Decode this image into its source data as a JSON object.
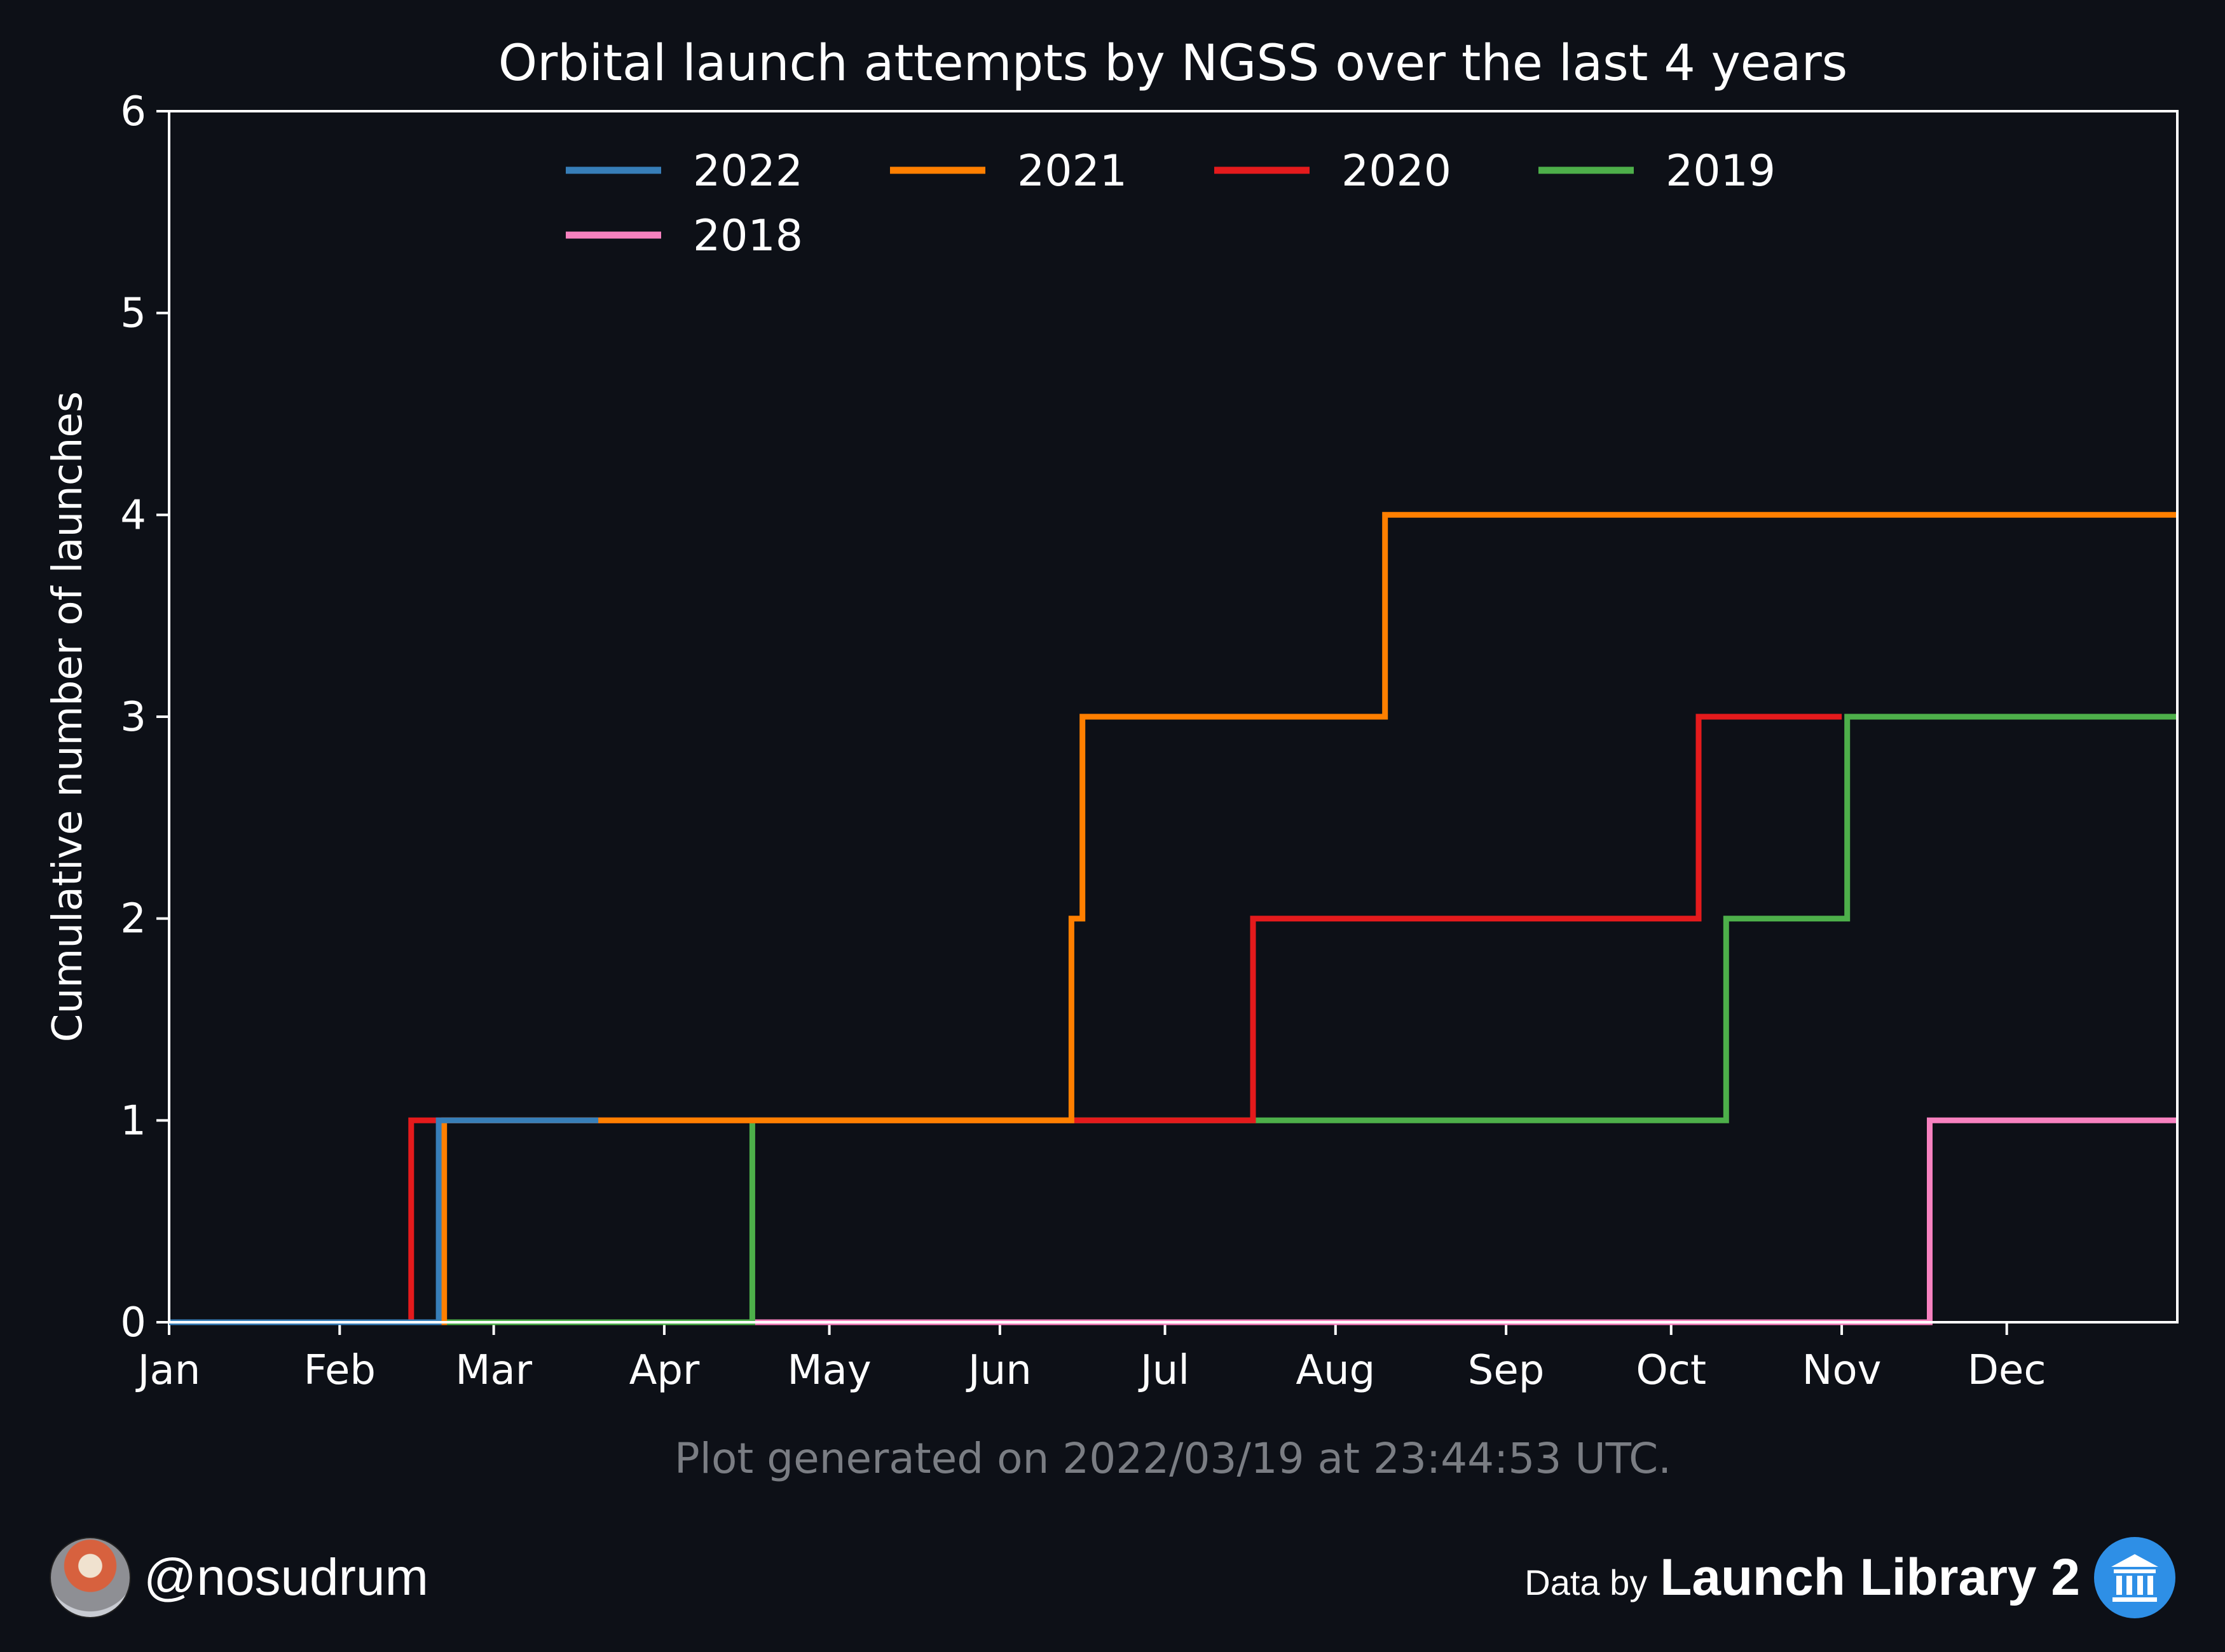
{
  "chart_data": {
    "type": "line",
    "step": true,
    "title": "Orbital launch attempts by NGSS over the last 4 years",
    "xlabel": "",
    "ylabel": "Cumulative number of launches",
    "x_unit": "day of year",
    "xlim": [
      1,
      366
    ],
    "ylim": [
      0,
      6
    ],
    "yticks": [
      0,
      1,
      2,
      3,
      4,
      5,
      6
    ],
    "xticks": [
      {
        "label": "Jan",
        "day": 1
      },
      {
        "label": "Feb",
        "day": 32
      },
      {
        "label": "Mar",
        "day": 60
      },
      {
        "label": "Apr",
        "day": 91
      },
      {
        "label": "May",
        "day": 121
      },
      {
        "label": "Jun",
        "day": 152
      },
      {
        "label": "Jul",
        "day": 182
      },
      {
        "label": "Aug",
        "day": 213
      },
      {
        "label": "Sep",
        "day": 244
      },
      {
        "label": "Oct",
        "day": 274
      },
      {
        "label": "Nov",
        "day": 305
      },
      {
        "label": "Dec",
        "day": 335
      }
    ],
    "legend_position": "top-center",
    "grid": false,
    "series": [
      {
        "name": "2022",
        "color": "#377eb8",
        "x": [
          1,
          50,
          50,
          79
        ],
        "y": [
          0,
          0,
          1,
          1
        ]
      },
      {
        "name": "2021",
        "color": "#ff7f00",
        "x": [
          1,
          51,
          51,
          165,
          165,
          167,
          167,
          222,
          222,
          366
        ],
        "y": [
          0,
          0,
          1,
          1,
          2,
          2,
          3,
          3,
          4,
          4
        ]
      },
      {
        "name": "2020",
        "color": "#e41a1c",
        "x": [
          1,
          45,
          45,
          198,
          198,
          279,
          279,
          305
        ],
        "y": [
          0,
          0,
          1,
          1,
          2,
          2,
          3,
          3
        ]
      },
      {
        "name": "2019",
        "color": "#4daf4a",
        "x": [
          1,
          107,
          107,
          284,
          284,
          306,
          306,
          366
        ],
        "y": [
          0,
          0,
          1,
          1,
          2,
          2,
          3,
          3
        ]
      },
      {
        "name": "2018",
        "color": "#f781bf",
        "x": [
          1,
          321,
          321,
          366
        ],
        "y": [
          0,
          0,
          1,
          1
        ]
      }
    ],
    "annotation": "Plot generated on 2022/03/19 at 23:44:53 UTC."
  },
  "footer": {
    "handle": "@nosudrum",
    "data_by": "Data by",
    "library": "Launch Library 2"
  }
}
